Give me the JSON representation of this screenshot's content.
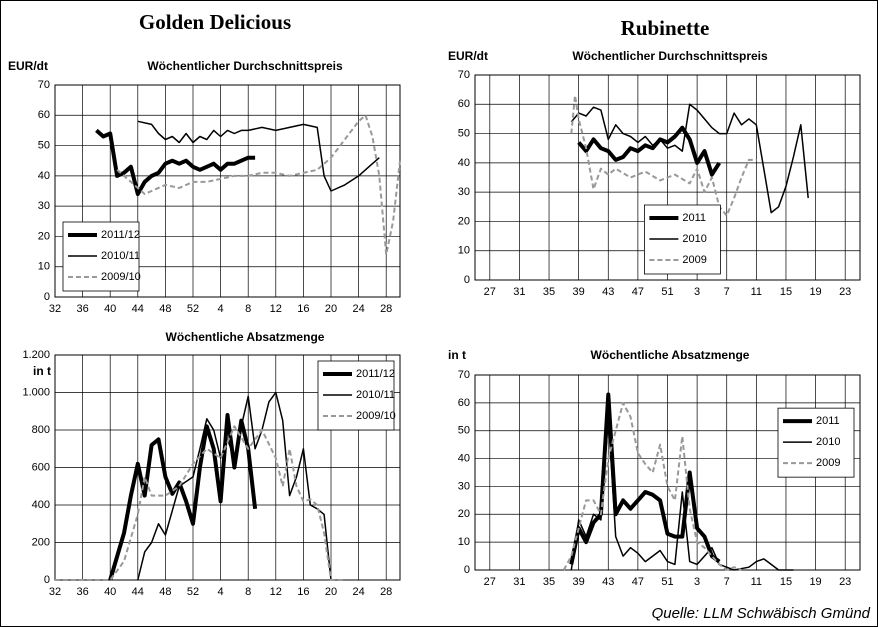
{
  "headers": [
    "Golden Delicious",
    "Rubinette"
  ],
  "source": "Quelle: LLM Schwäbisch Gmünd",
  "chart_data": [
    {
      "type": "line",
      "subtitle": "Wöchentlicher Durchschnittspreis",
      "ylabel": "EUR/dt",
      "xlim": [
        32,
        82
      ],
      "ylim": [
        0,
        70
      ],
      "xticks": [
        32,
        36,
        40,
        44,
        48,
        52,
        {
          "value": 56,
          "label": "4"
        },
        {
          "value": 60,
          "label": "8"
        },
        {
          "value": 64,
          "label": "12"
        },
        {
          "value": 68,
          "label": "16"
        },
        {
          "value": 72,
          "label": "20"
        },
        {
          "value": 76,
          "label": "24"
        },
        {
          "value": 80,
          "label": "28"
        }
      ],
      "yticks": [
        0,
        10,
        20,
        30,
        40,
        50,
        60,
        70
      ],
      "grid": true,
      "legend": "lower left",
      "series": [
        {
          "name": "2011/12",
          "color": "#000000",
          "linewidth": 4,
          "dash": false,
          "x": [
            38,
            39,
            40,
            41,
            42,
            43,
            44,
            45,
            46,
            47,
            48,
            49,
            50,
            51,
            52,
            53,
            54,
            55,
            56,
            57,
            58,
            59,
            60,
            61
          ],
          "values": [
            55,
            53,
            54,
            40,
            41,
            43,
            34,
            38,
            40,
            41,
            44,
            45,
            44,
            45,
            43,
            42,
            43,
            44,
            42,
            44,
            44,
            45,
            46,
            46
          ]
        },
        {
          "name": "2010/11",
          "color": "#000000",
          "linewidth": 1.5,
          "dash": false,
          "x": [
            44,
            46,
            47,
            48,
            49,
            50,
            51,
            52,
            53,
            54,
            55,
            56,
            57,
            58,
            59,
            60,
            62,
            64,
            66,
            68,
            70,
            71,
            72,
            74,
            76,
            78,
            79
          ],
          "values": [
            58,
            57,
            54,
            52,
            53,
            51,
            54,
            51,
            53,
            52,
            55,
            53,
            55,
            54,
            55,
            55,
            56,
            55,
            56,
            57,
            56,
            40,
            35,
            37,
            40,
            44,
            46
          ]
        },
        {
          "name": "2009/10",
          "color": "#999999",
          "linewidth": 2,
          "dash": true,
          "x": [
            41,
            42,
            43,
            44,
            45,
            46,
            48,
            50,
            52,
            54,
            56,
            58,
            60,
            62,
            64,
            66,
            68,
            70,
            72,
            74,
            76,
            77,
            78,
            79,
            80,
            81,
            82
          ],
          "values": [
            42,
            40,
            38,
            36,
            34,
            35,
            37,
            36,
            38,
            38,
            39,
            40,
            40,
            41,
            41,
            40,
            41,
            42,
            46,
            52,
            58,
            60,
            53,
            40,
            14,
            25,
            45
          ]
        }
      ]
    },
    {
      "type": "line",
      "subtitle": "Wöchentlicher Durchschnittspreis",
      "ylabel": "EUR/dt",
      "xlim": [
        25,
        77
      ],
      "ylim": [
        0,
        70
      ],
      "xticks": [
        27,
        31,
        35,
        39,
        43,
        47,
        51,
        {
          "value": 55,
          "label": "3"
        },
        {
          "value": 59,
          "label": "7"
        },
        {
          "value": 63,
          "label": "11"
        },
        {
          "value": 67,
          "label": "15"
        },
        {
          "value": 71,
          "label": "19"
        },
        {
          "value": 75,
          "label": "23"
        }
      ],
      "yticks": [
        0,
        10,
        20,
        30,
        40,
        50,
        60,
        70
      ],
      "grid": true,
      "legend": "lower center",
      "series": [
        {
          "name": "2011",
          "color": "#000000",
          "linewidth": 4,
          "dash": false,
          "x": [
            39,
            40,
            41,
            42,
            43,
            44,
            45,
            46,
            47,
            48,
            49,
            50,
            51,
            52,
            53,
            54,
            55,
            56,
            57,
            58
          ],
          "values": [
            47,
            44,
            48,
            45,
            44,
            41,
            42,
            45,
            44,
            46,
            45,
            48,
            47,
            49,
            52,
            48,
            40,
            44,
            36,
            40
          ]
        },
        {
          "name": "2010",
          "color": "#000000",
          "linewidth": 1.5,
          "dash": false,
          "x": [
            38,
            39,
            40,
            41,
            42,
            43,
            44,
            45,
            46,
            47,
            48,
            49,
            50,
            51,
            52,
            53,
            54,
            55,
            56,
            57,
            58,
            59,
            60,
            61,
            62,
            63,
            64,
            65,
            66,
            67,
            68,
            69,
            70
          ],
          "values": [
            54,
            57,
            56,
            59,
            58,
            48,
            53,
            50,
            49,
            47,
            49,
            46,
            48,
            45,
            46,
            44,
            60,
            58,
            55,
            52,
            50,
            50,
            57,
            53,
            55,
            53,
            38,
            23,
            25,
            32,
            42,
            53,
            28
          ]
        },
        {
          "name": "2009",
          "color": "#999999",
          "linewidth": 2,
          "dash": true,
          "x": [
            38,
            38.5,
            39,
            40,
            41,
            42,
            43,
            44,
            46,
            48,
            50,
            52,
            54,
            55,
            56,
            57,
            58,
            59,
            60,
            61,
            62,
            63
          ],
          "values": [
            50,
            63,
            55,
            45,
            31,
            38,
            36,
            38,
            35,
            37,
            34,
            36,
            33,
            38,
            30,
            35,
            25,
            22,
            28,
            35,
            41,
            41
          ]
        }
      ]
    },
    {
      "type": "line",
      "subtitle": "Wöchentliche Absatzmenge",
      "ylabel": "in t",
      "xlim": [
        32,
        82
      ],
      "ylim": [
        0,
        1200
      ],
      "xticks": [
        32,
        36,
        40,
        44,
        48,
        52,
        {
          "value": 56,
          "label": "4"
        },
        {
          "value": 60,
          "label": "8"
        },
        {
          "value": 64,
          "label": "12"
        },
        {
          "value": 68,
          "label": "16"
        },
        {
          "value": 72,
          "label": "20"
        },
        {
          "value": 76,
          "label": "24"
        },
        {
          "value": 80,
          "label": "28"
        }
      ],
      "yticks": [
        0,
        200,
        400,
        600,
        800,
        {
          "value": 1000,
          "label": "1.000"
        },
        {
          "value": 1200,
          "label": "1.200"
        }
      ],
      "grid": true,
      "legend": "upper right",
      "series": [
        {
          "name": "2011/12",
          "color": "#000000",
          "linewidth": 4,
          "dash": false,
          "x": [
            40,
            42,
            43,
            44,
            45,
            46,
            47,
            48,
            49,
            50,
            51,
            52,
            53,
            54,
            55,
            56,
            57,
            58,
            59,
            60,
            61
          ],
          "values": [
            0,
            250,
            450,
            620,
            450,
            720,
            750,
            550,
            460,
            520,
            420,
            300,
            600,
            820,
            700,
            420,
            880,
            600,
            850,
            700,
            380
          ]
        },
        {
          "name": "2010/11",
          "color": "#000000",
          "linewidth": 1.5,
          "dash": false,
          "x": [
            44,
            45,
            46,
            47,
            48,
            50,
            52,
            53,
            54,
            55,
            56,
            57,
            58,
            59,
            60,
            61,
            62,
            63,
            64,
            65,
            66,
            67,
            68,
            69,
            70,
            71,
            72
          ],
          "values": [
            0,
            150,
            200,
            300,
            240,
            500,
            550,
            700,
            860,
            800,
            650,
            750,
            650,
            820,
            980,
            700,
            800,
            950,
            1000,
            850,
            450,
            550,
            700,
            400,
            380,
            350,
            0
          ]
        },
        {
          "name": "2009/10",
          "color": "#999999",
          "linewidth": 2,
          "dash": true,
          "x": [
            32,
            40,
            42,
            44,
            45,
            46,
            48,
            50,
            52,
            54,
            56,
            58,
            60,
            62,
            64,
            65,
            66,
            67,
            68,
            69,
            70,
            71,
            72,
            74
          ],
          "values": [
            0,
            0,
            100,
            350,
            550,
            450,
            450,
            500,
            620,
            700,
            650,
            820,
            700,
            800,
            650,
            500,
            700,
            500,
            420,
            430,
            400,
            250,
            0,
            0
          ]
        }
      ]
    },
    {
      "type": "line",
      "subtitle": "Wöchentliche Absatzmenge",
      "ylabel": "in t",
      "xlim": [
        25,
        77
      ],
      "ylim": [
        0,
        70
      ],
      "xticks": [
        27,
        31,
        35,
        39,
        43,
        47,
        51,
        {
          "value": 55,
          "label": "3"
        },
        {
          "value": 59,
          "label": "7"
        },
        {
          "value": 63,
          "label": "11"
        },
        {
          "value": 67,
          "label": "15"
        },
        {
          "value": 71,
          "label": "19"
        },
        {
          "value": 75,
          "label": "23"
        }
      ],
      "yticks": [
        0,
        10,
        20,
        30,
        40,
        50,
        60,
        70
      ],
      "grid": true,
      "legend": "center right",
      "series": [
        {
          "name": "2011",
          "color": "#000000",
          "linewidth": 4,
          "dash": false,
          "x": [
            38,
            39,
            40,
            41,
            42,
            43,
            44,
            45,
            46,
            47,
            48,
            49,
            50,
            51,
            52,
            53,
            54,
            55,
            56,
            57,
            58
          ],
          "values": [
            2,
            15,
            10,
            17,
            20,
            63,
            20,
            25,
            22,
            25,
            28,
            27,
            25,
            13,
            12,
            12,
            35,
            15,
            12,
            5,
            3
          ]
        },
        {
          "name": "2010",
          "color": "#000000",
          "linewidth": 1.5,
          "dash": false,
          "x": [
            38,
            39,
            40,
            41,
            42,
            43,
            44,
            45,
            46,
            47,
            48,
            49,
            50,
            51,
            52,
            53,
            54,
            55,
            56,
            57,
            58,
            59,
            60,
            62,
            63,
            64,
            65,
            66,
            68
          ],
          "values": [
            0,
            18,
            12,
            20,
            18,
            55,
            12,
            5,
            8,
            6,
            3,
            5,
            7,
            3,
            2,
            28,
            3,
            2,
            5,
            8,
            2,
            1,
            0,
            1,
            3,
            4,
            2,
            0,
            0
          ]
        },
        {
          "name": "2009",
          "color": "#999999",
          "linewidth": 2,
          "dash": true,
          "x": [
            37,
            38,
            39,
            40,
            41,
            42,
            43,
            44,
            45,
            46,
            47,
            48,
            49,
            50,
            51,
            52,
            53,
            54,
            55,
            56,
            57,
            58,
            59,
            60,
            61
          ],
          "values": [
            0,
            5,
            15,
            25,
            25,
            20,
            40,
            50,
            60,
            55,
            42,
            38,
            35,
            45,
            30,
            25,
            48,
            22,
            10,
            8,
            5,
            2,
            0,
            1,
            0
          ]
        }
      ]
    }
  ]
}
